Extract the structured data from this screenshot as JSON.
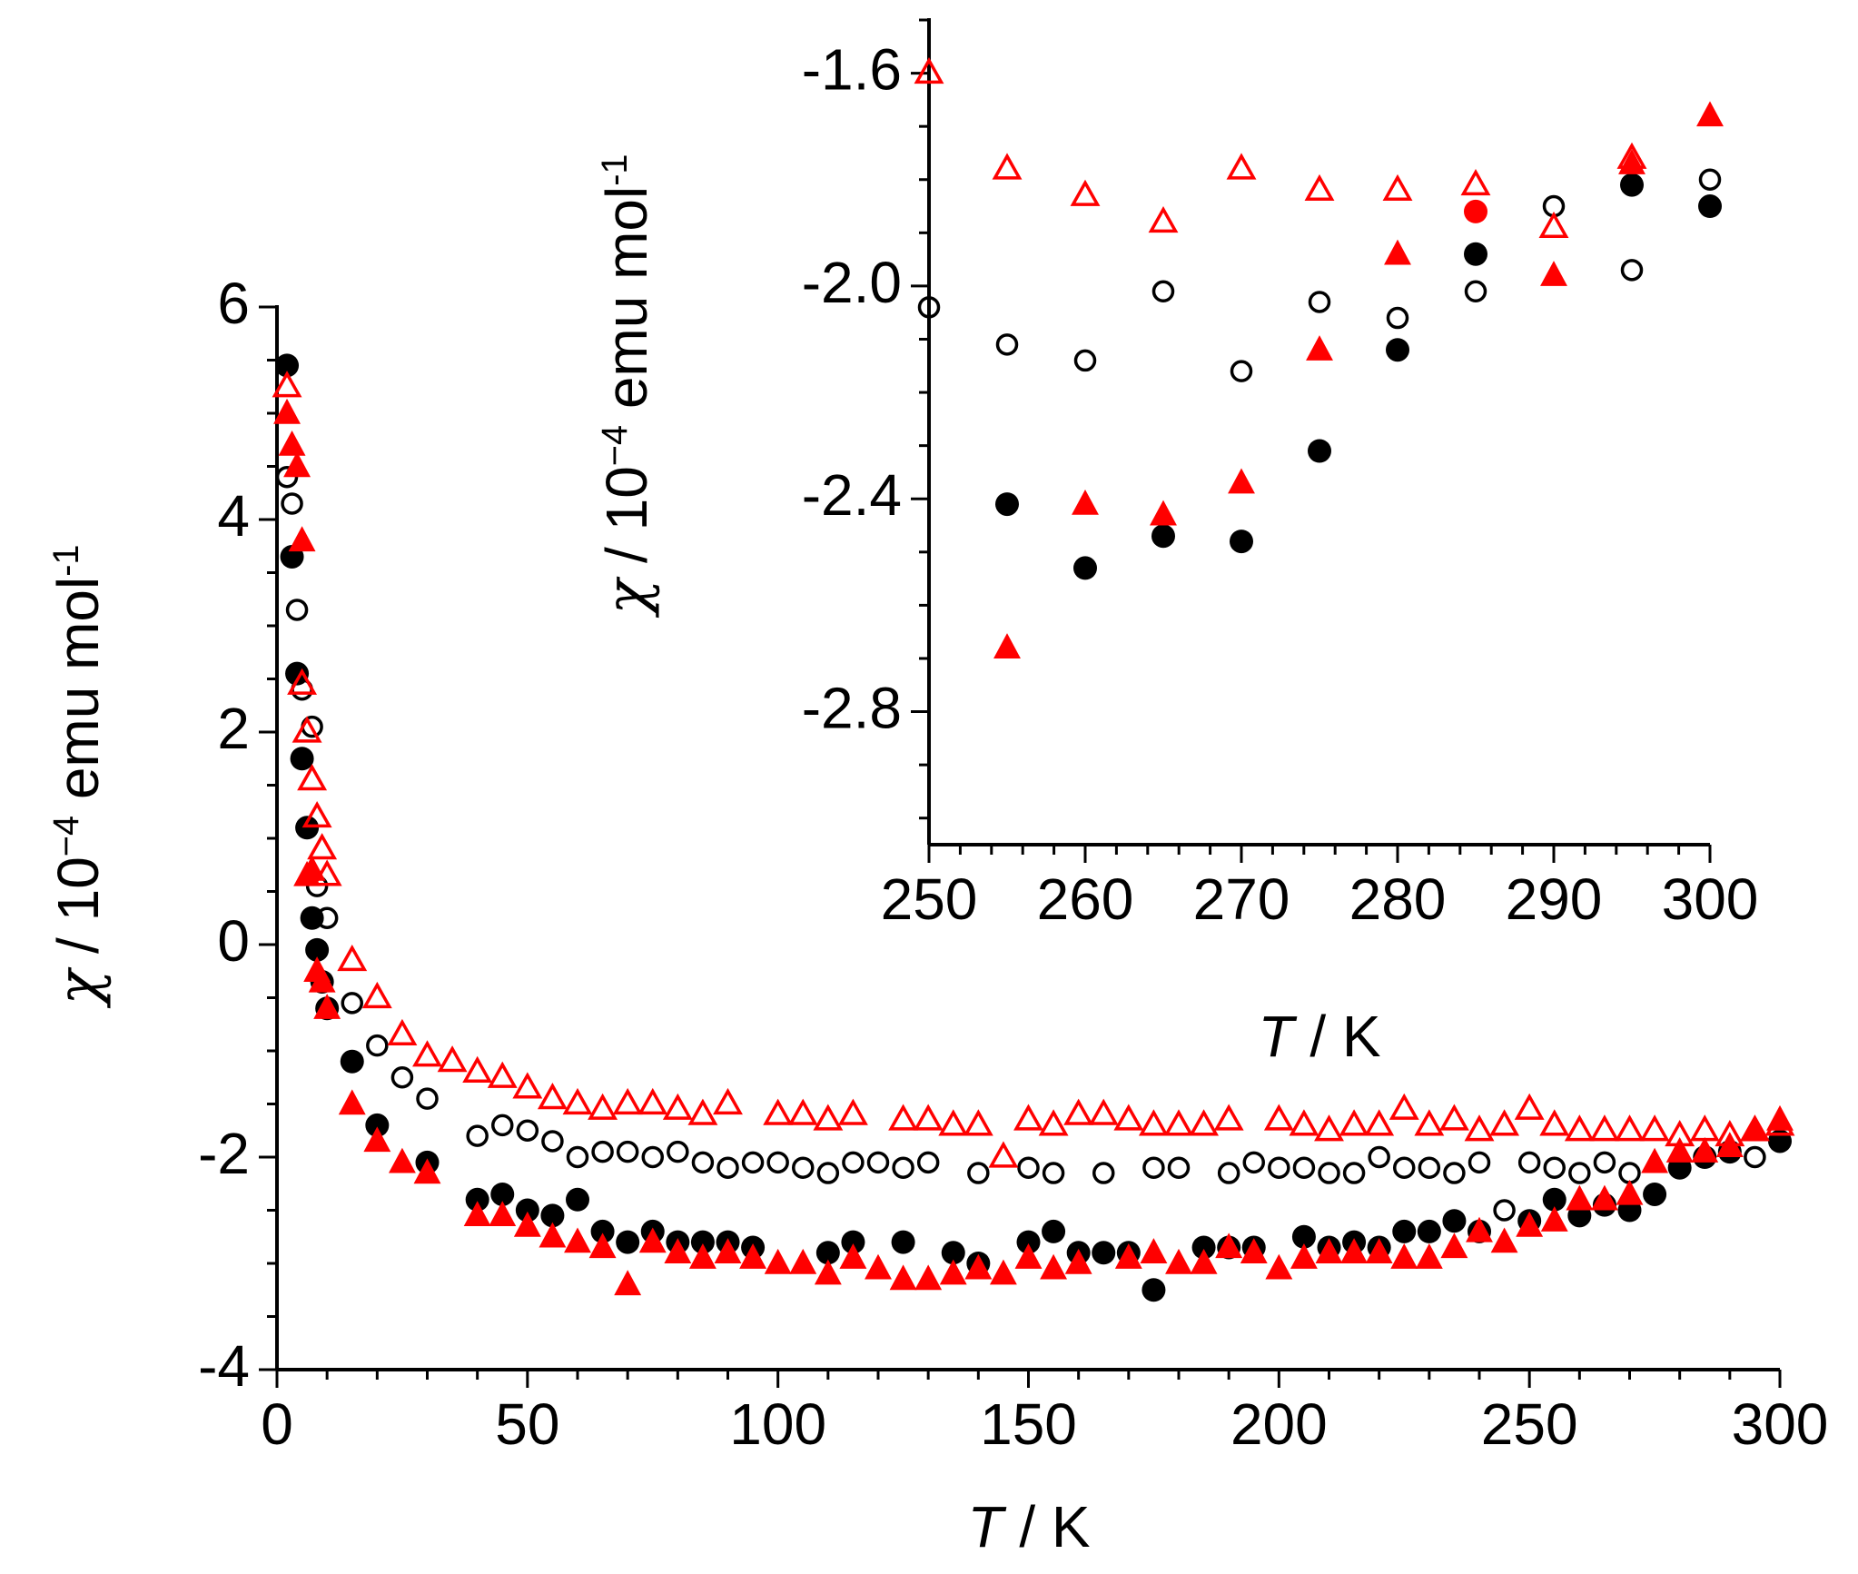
{
  "chart_data": [
    {
      "type": "scatter",
      "name": "main",
      "xlabel_var": "T",
      "xlabel_unit": " / K",
      "ylabel_var": "χ",
      "ylabel_pre": " / 10",
      "ylabel_exp": "−4",
      "ylabel_mid": " emu mol",
      "ylabel_exp2": "-1",
      "xlim": [
        0,
        300
      ],
      "ylim": [
        -4,
        6
      ],
      "x_ticks": [
        0,
        50,
        100,
        150,
        200,
        250,
        300
      ],
      "x_tick_labels": [
        "0",
        "50",
        "100",
        "150",
        "200",
        "250",
        "300"
      ],
      "y_ticks": [
        -4,
        -2,
        0,
        2,
        4,
        6
      ],
      "y_tick_labels": [
        "-4",
        "-2",
        "0",
        "2",
        "4",
        "6"
      ],
      "series": [
        {
          "name": "black-filled-circles",
          "marker": "circle",
          "filled": true,
          "color": "#000000",
          "x": [
            2,
            3,
            4,
            5,
            6,
            7,
            8,
            9,
            10,
            15,
            20,
            30,
            40,
            45,
            50,
            55,
            60,
            65,
            70,
            75,
            80,
            85,
            90,
            95,
            110,
            115,
            125,
            135,
            140,
            150,
            155,
            160,
            165,
            170,
            175,
            185,
            190,
            195,
            205,
            210,
            215,
            220,
            225,
            230,
            235,
            240,
            250,
            255,
            260,
            265,
            270,
            275,
            280,
            285,
            290,
            300
          ],
          "y": [
            5.45,
            3.65,
            2.55,
            1.75,
            1.1,
            0.25,
            -0.05,
            -0.35,
            -0.6,
            -1.1,
            -1.7,
            -2.05,
            -2.4,
            -2.35,
            -2.5,
            -2.55,
            -2.4,
            -2.7,
            -2.8,
            -2.7,
            -2.8,
            -2.8,
            -2.8,
            -2.85,
            -2.9,
            -2.8,
            -2.8,
            -2.9,
            -3.0,
            -2.8,
            -2.7,
            -2.9,
            -2.9,
            -2.9,
            -3.25,
            -2.85,
            -2.85,
            -2.85,
            -2.75,
            -2.85,
            -2.8,
            -2.85,
            -2.7,
            -2.7,
            -2.6,
            -2.7,
            -2.6,
            -2.4,
            -2.55,
            -2.45,
            -2.5,
            -2.35,
            -2.1,
            -2.0,
            -1.95,
            -1.85
          ]
        },
        {
          "name": "black-open-circles",
          "marker": "circle",
          "filled": false,
          "color": "#000000",
          "x": [
            2,
            3,
            4,
            5,
            7,
            8,
            10,
            15,
            20,
            25,
            30,
            40,
            45,
            50,
            55,
            60,
            65,
            70,
            75,
            80,
            85,
            90,
            95,
            100,
            105,
            110,
            115,
            120,
            125,
            130,
            140,
            150,
            155,
            165,
            175,
            180,
            190,
            195,
            200,
            205,
            210,
            215,
            220,
            225,
            230,
            235,
            240,
            245,
            250,
            255,
            260,
            265,
            270,
            280,
            285,
            295
          ],
          "y": [
            4.4,
            4.15,
            3.15,
            2.4,
            2.05,
            0.55,
            0.25,
            -0.55,
            -0.95,
            -1.25,
            -1.45,
            -1.8,
            -1.7,
            -1.75,
            -1.85,
            -2.0,
            -1.95,
            -1.95,
            -2.0,
            -1.95,
            -2.05,
            -2.1,
            -2.05,
            -2.05,
            -2.1,
            -2.15,
            -2.05,
            -2.05,
            -2.1,
            -2.05,
            -2.15,
            -2.1,
            -2.15,
            -2.15,
            -2.1,
            -2.1,
            -2.15,
            -2.05,
            -2.1,
            -2.1,
            -2.15,
            -2.15,
            -2.0,
            -2.1,
            -2.1,
            -2.15,
            -2.05,
            -2.5,
            -2.05,
            -2.1,
            -2.15,
            -2.05,
            -2.15,
            -2.1,
            -2.0,
            -2.0
          ]
        },
        {
          "name": "red-filled-triangles",
          "marker": "triangle",
          "filled": true,
          "color": "#ff0000",
          "x": [
            2,
            3,
            4,
            5,
            6,
            7,
            8,
            9,
            10,
            15,
            20,
            25,
            30,
            40,
            45,
            50,
            55,
            60,
            65,
            70,
            75,
            80,
            85,
            90,
            95,
            100,
            105,
            110,
            115,
            120,
            125,
            130,
            135,
            140,
            145,
            150,
            155,
            160,
            170,
            175,
            180,
            185,
            190,
            195,
            200,
            205,
            210,
            215,
            220,
            225,
            230,
            235,
            240,
            245,
            250,
            255,
            260,
            265,
            270,
            275,
            280,
            285,
            290,
            295,
            300
          ],
          "y": [
            5.0,
            4.7,
            4.5,
            3.8,
            0.65,
            0.7,
            -0.25,
            -0.35,
            -0.6,
            -1.5,
            -1.85,
            -2.05,
            -2.15,
            -2.55,
            -2.55,
            -2.65,
            -2.75,
            -2.8,
            -2.85,
            -3.2,
            -2.8,
            -2.9,
            -2.95,
            -2.9,
            -2.95,
            -3.0,
            -3.0,
            -3.1,
            -2.95,
            -3.05,
            -3.15,
            -3.15,
            -3.1,
            -3.05,
            -3.1,
            -2.95,
            -3.05,
            -3.0,
            -2.95,
            -2.9,
            -3.0,
            -3.0,
            -2.85,
            -2.9,
            -3.05,
            -2.95,
            -2.9,
            -2.9,
            -2.9,
            -2.95,
            -2.95,
            -2.85,
            -2.7,
            -2.8,
            -2.65,
            -2.6,
            -2.4,
            -2.4,
            -2.35,
            -2.05,
            -1.95,
            -1.95,
            -1.9,
            -1.75,
            -1.65
          ]
        },
        {
          "name": "red-open-triangles",
          "marker": "triangle",
          "filled": false,
          "color": "#ff0000",
          "x": [
            2,
            5,
            6,
            7,
            8,
            9,
            10,
            15,
            20,
            25,
            30,
            35,
            40,
            45,
            50,
            55,
            60,
            65,
            70,
            75,
            80,
            85,
            90,
            100,
            105,
            110,
            115,
            125,
            130,
            135,
            140,
            145,
            150,
            155,
            160,
            165,
            170,
            175,
            180,
            185,
            190,
            200,
            205,
            210,
            215,
            220,
            225,
            230,
            235,
            240,
            245,
            250,
            255,
            260,
            265,
            270,
            275,
            280,
            285,
            290,
            295,
            300
          ],
          "y": [
            5.25,
            2.45,
            2.0,
            1.55,
            1.2,
            0.9,
            0.65,
            -0.15,
            -0.5,
            -0.85,
            -1.05,
            -1.1,
            -1.2,
            -1.25,
            -1.35,
            -1.45,
            -1.5,
            -1.55,
            -1.5,
            -1.5,
            -1.55,
            -1.6,
            -1.5,
            -1.6,
            -1.6,
            -1.65,
            -1.6,
            -1.65,
            -1.65,
            -1.7,
            -1.7,
            -2.0,
            -1.65,
            -1.7,
            -1.6,
            -1.6,
            -1.65,
            -1.7,
            -1.7,
            -1.7,
            -1.65,
            -1.65,
            -1.7,
            -1.75,
            -1.7,
            -1.7,
            -1.55,
            -1.7,
            -1.65,
            -1.75,
            -1.7,
            -1.55,
            -1.7,
            -1.75,
            -1.75,
            -1.75,
            -1.75,
            -1.8,
            -1.75,
            -1.8,
            -1.75,
            -1.7
          ]
        }
      ]
    },
    {
      "type": "scatter",
      "name": "inset",
      "xlabel_var": "T",
      "xlabel_unit": " / K",
      "ylabel_var": "χ",
      "ylabel_pre": " / 10",
      "ylabel_exp": "−4",
      "ylabel_mid": " emu mol",
      "ylabel_exp2": "-1",
      "xlim": [
        250,
        300
      ],
      "ylim": [
        -3.05,
        -1.5
      ],
      "x_ticks": [
        250,
        260,
        270,
        280,
        290,
        300
      ],
      "x_tick_labels": [
        "250",
        "260",
        "270",
        "280",
        "290",
        "300"
      ],
      "y_ticks": [
        -1.6,
        -2.0,
        -2.4,
        -2.8
      ],
      "y_tick_labels": [
        "-1.6",
        "-2.0",
        "-2.4",
        "-2.8"
      ],
      "series": [
        {
          "name": "inset-black-filled-circles",
          "marker": "circle",
          "filled": true,
          "color": "#000000",
          "x": [
            255,
            260,
            265,
            270,
            275,
            280,
            285,
            295,
            300
          ],
          "y": [
            -2.41,
            -2.53,
            -2.47,
            -2.48,
            -2.31,
            -2.12,
            -1.94,
            -1.81,
            -1.85
          ]
        },
        {
          "name": "inset-black-open-circles",
          "marker": "circle",
          "filled": false,
          "color": "#000000",
          "x": [
            250,
            255,
            260,
            265,
            270,
            275,
            280,
            285,
            290,
            295,
            300
          ],
          "y": [
            -2.04,
            -2.11,
            -2.14,
            -2.01,
            -2.16,
            -2.03,
            -2.06,
            -2.01,
            -1.85,
            -1.97,
            -1.8
          ]
        },
        {
          "name": "inset-red-filled-triangles",
          "marker": "triangle",
          "filled": true,
          "color": "#ff0000",
          "x": [
            255,
            260,
            265,
            270,
            275,
            280,
            290,
            295,
            300
          ],
          "y": [
            -2.68,
            -2.41,
            -2.43,
            -2.37,
            -2.12,
            -1.94,
            -1.98,
            -1.77,
            -1.68
          ]
        },
        {
          "name": "inset-red-open-triangles",
          "marker": "triangle",
          "filled": false,
          "color": "#ff0000",
          "x": [
            250,
            255,
            260,
            265,
            270,
            275,
            280,
            285,
            290,
            295
          ],
          "y": [
            -1.6,
            -1.78,
            -1.83,
            -1.88,
            -1.78,
            -1.82,
            -1.82,
            -1.81,
            -1.89,
            -1.76
          ]
        },
        {
          "name": "inset-red-filled-circles",
          "marker": "circle",
          "filled": true,
          "color": "#ff0000",
          "x": [
            285
          ],
          "y": [
            -1.86
          ]
        }
      ]
    }
  ]
}
